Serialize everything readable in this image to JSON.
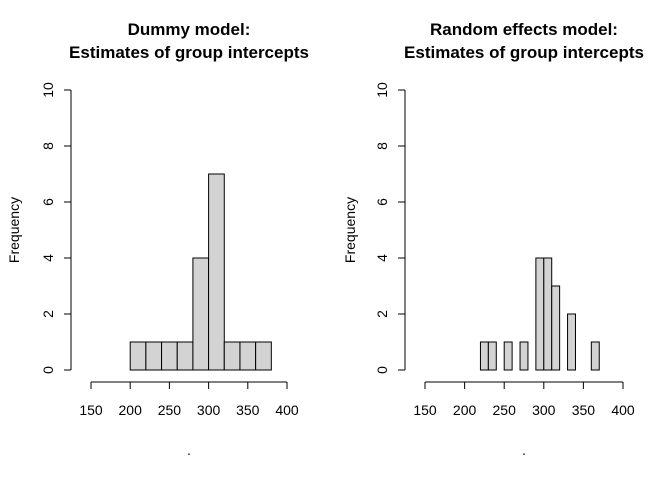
{
  "chart_data": [
    {
      "type": "bar",
      "title_lines": [
        "Dummy model:",
        "Estimates of group intercepts"
      ],
      "xlabel": ".",
      "ylabel": "Frequency",
      "xlim": [
        150,
        400
      ],
      "ylim": [
        0,
        10
      ],
      "x_ticks": [
        150,
        200,
        250,
        300,
        350,
        400
      ],
      "y_ticks": [
        0,
        2,
        4,
        6,
        8,
        10
      ],
      "bins": [
        {
          "x0": 200,
          "x1": 220,
          "count": 1
        },
        {
          "x0": 220,
          "x1": 240,
          "count": 1
        },
        {
          "x0": 240,
          "x1": 260,
          "count": 1
        },
        {
          "x0": 260,
          "x1": 280,
          "count": 1
        },
        {
          "x0": 280,
          "x1": 300,
          "count": 4
        },
        {
          "x0": 300,
          "x1": 320,
          "count": 7
        },
        {
          "x0": 320,
          "x1": 340,
          "count": 1
        },
        {
          "x0": 340,
          "x1": 360,
          "count": 1
        },
        {
          "x0": 360,
          "x1": 380,
          "count": 1
        }
      ]
    },
    {
      "type": "bar",
      "title_lines": [
        "Random effects model:",
        "Estimates of group intercepts"
      ],
      "xlabel": ".",
      "ylabel": "Frequency",
      "xlim": [
        150,
        400
      ],
      "ylim": [
        0,
        10
      ],
      "x_ticks": [
        150,
        200,
        250,
        300,
        350,
        400
      ],
      "y_ticks": [
        0,
        2,
        4,
        6,
        8,
        10
      ],
      "bins": [
        {
          "x0": 220,
          "x1": 230,
          "count": 1
        },
        {
          "x0": 230,
          "x1": 240,
          "count": 1
        },
        {
          "x0": 240,
          "x1": 250,
          "count": 0
        },
        {
          "x0": 250,
          "x1": 260,
          "count": 1
        },
        {
          "x0": 260,
          "x1": 270,
          "count": 0
        },
        {
          "x0": 270,
          "x1": 280,
          "count": 1
        },
        {
          "x0": 280,
          "x1": 290,
          "count": 0
        },
        {
          "x0": 290,
          "x1": 300,
          "count": 4
        },
        {
          "x0": 300,
          "x1": 310,
          "count": 4
        },
        {
          "x0": 310,
          "x1": 320,
          "count": 3
        },
        {
          "x0": 320,
          "x1": 330,
          "count": 0
        },
        {
          "x0": 330,
          "x1": 340,
          "count": 2
        },
        {
          "x0": 340,
          "x1": 350,
          "count": 0
        },
        {
          "x0": 350,
          "x1": 360,
          "count": 0
        },
        {
          "x0": 360,
          "x1": 370,
          "count": 1
        }
      ]
    }
  ]
}
